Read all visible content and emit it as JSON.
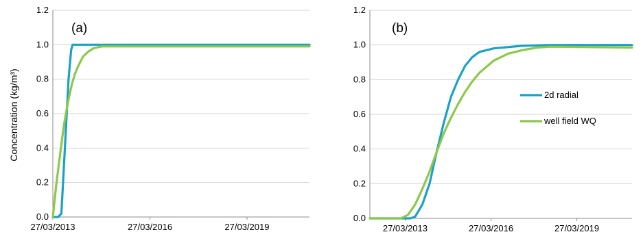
{
  "colors": {
    "radial": "#1ba1c4",
    "wellfield": "#8cc84b",
    "grid": "#d4d4d4",
    "axis": "#8c8c8c"
  },
  "chart_data": [
    {
      "type": "line",
      "panel_label": "(a)",
      "ylabel": "Concentration (kg/m³)",
      "ylim": [
        0,
        1.2
      ],
      "yticks": [
        "0.0",
        "0.2",
        "0.4",
        "0.6",
        "0.8",
        "1.0",
        "1.2"
      ],
      "xticks": [
        "27/03/2013",
        "27/03/2016",
        "27/03/2019"
      ],
      "xlim": [
        "2013-03-27",
        "2021-03-01"
      ],
      "grid": true,
      "legend": "none",
      "series": [
        {
          "color_key": "radial",
          "points": [
            [
              "2013-03-27",
              0.0
            ],
            [
              "2013-05-27",
              0.0
            ],
            [
              "2013-07-01",
              0.02
            ],
            [
              "2013-07-20",
              0.2
            ],
            [
              "2013-08-20",
              0.5
            ],
            [
              "2013-09-20",
              0.8
            ],
            [
              "2013-10-20",
              0.97
            ],
            [
              "2013-11-05",
              1.0
            ],
            [
              "2021-03-01",
              1.0
            ]
          ]
        },
        {
          "color_key": "wellfield",
          "points": [
            [
              "2013-03-27",
              0.0
            ],
            [
              "2013-05-01",
              0.17
            ],
            [
              "2013-06-01",
              0.3
            ],
            [
              "2013-07-01",
              0.42
            ],
            [
              "2013-08-01",
              0.54
            ],
            [
              "2013-09-01",
              0.63
            ],
            [
              "2013-10-01",
              0.71
            ],
            [
              "2013-11-01",
              0.78
            ],
            [
              "2013-12-01",
              0.83
            ],
            [
              "2014-01-01",
              0.87
            ],
            [
              "2014-03-01",
              0.93
            ],
            [
              "2014-05-01",
              0.96
            ],
            [
              "2014-07-01",
              0.98
            ],
            [
              "2014-10-01",
              0.99
            ],
            [
              "2021-03-01",
              0.99
            ]
          ]
        }
      ]
    },
    {
      "type": "line",
      "panel_label": "(b)",
      "ylabel": "",
      "ylim": [
        0,
        1.2
      ],
      "yticks": [
        "0.0",
        "0.2",
        "0.4",
        "0.6",
        "0.8",
        "1.0",
        "1.2"
      ],
      "xticks": [
        "27/03/2013",
        "27/03/2016",
        "27/03/2019"
      ],
      "xlim": [
        "2012-01-01",
        "2021-03-01"
      ],
      "grid": true,
      "legend": "right",
      "series": [
        {
          "name": "2d radial",
          "color_key": "radial",
          "points": [
            [
              "2012-01-01",
              0.0
            ],
            [
              "2013-06-01",
              0.0
            ],
            [
              "2013-08-01",
              0.01
            ],
            [
              "2013-11-01",
              0.08
            ],
            [
              "2014-02-01",
              0.2
            ],
            [
              "2014-05-01",
              0.38
            ],
            [
              "2014-08-01",
              0.55
            ],
            [
              "2014-11-01",
              0.7
            ],
            [
              "2015-02-01",
              0.8
            ],
            [
              "2015-05-01",
              0.88
            ],
            [
              "2015-08-01",
              0.93
            ],
            [
              "2015-11-01",
              0.96
            ],
            [
              "2016-05-01",
              0.98
            ],
            [
              "2017-05-01",
              0.995
            ],
            [
              "2018-05-01",
              1.0
            ],
            [
              "2021-03-01",
              1.0
            ]
          ]
        },
        {
          "name": "well field WQ",
          "color_key": "wellfield",
          "points": [
            [
              "2012-01-01",
              0.0
            ],
            [
              "2013-02-01",
              0.0
            ],
            [
              "2013-05-01",
              0.02
            ],
            [
              "2013-08-01",
              0.08
            ],
            [
              "2013-11-01",
              0.17
            ],
            [
              "2014-02-01",
              0.27
            ],
            [
              "2014-05-01",
              0.38
            ],
            [
              "2014-08-01",
              0.49
            ],
            [
              "2014-11-01",
              0.58
            ],
            [
              "2015-02-01",
              0.66
            ],
            [
              "2015-05-01",
              0.73
            ],
            [
              "2015-08-01",
              0.79
            ],
            [
              "2015-11-01",
              0.84
            ],
            [
              "2016-05-01",
              0.91
            ],
            [
              "2016-11-01",
              0.95
            ],
            [
              "2017-05-01",
              0.97
            ],
            [
              "2017-11-01",
              0.985
            ],
            [
              "2018-05-01",
              0.99
            ],
            [
              "2021-03-01",
              0.985
            ]
          ]
        }
      ]
    }
  ]
}
